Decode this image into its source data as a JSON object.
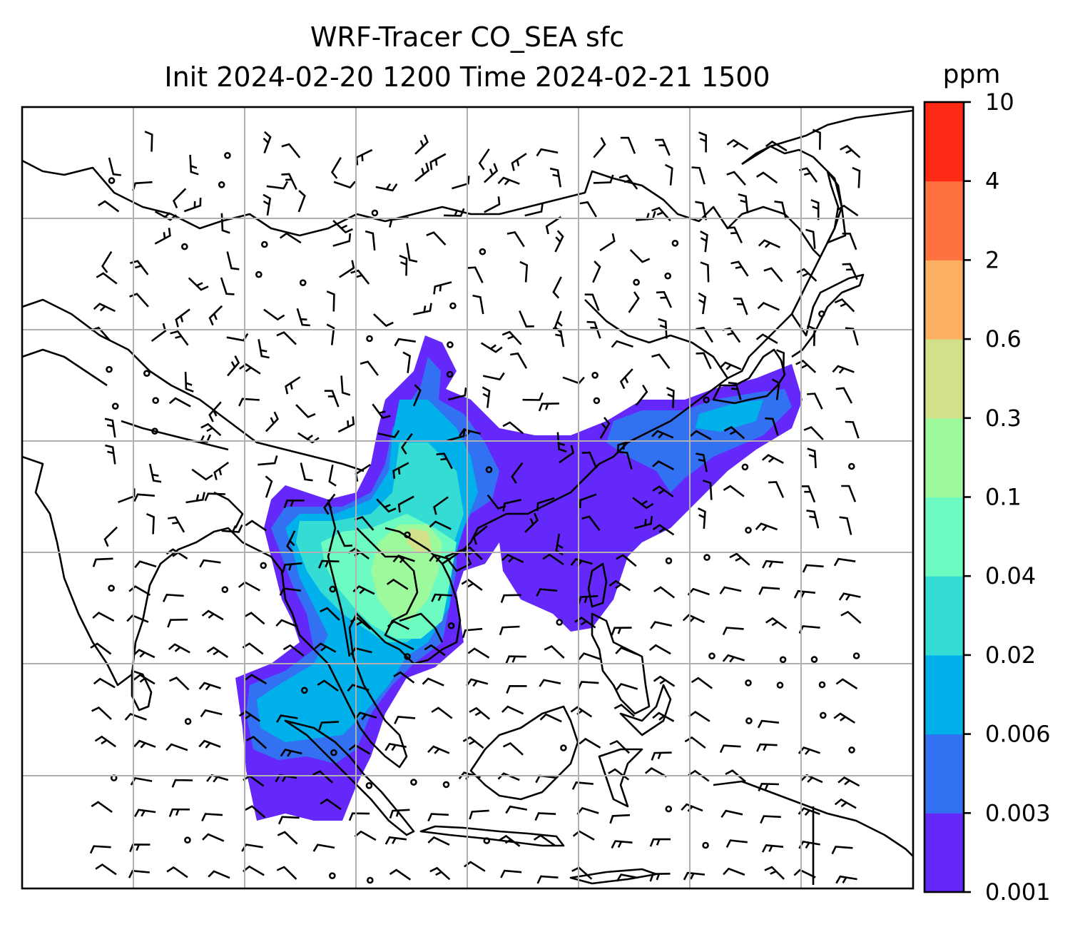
{
  "chart_data": {
    "type": "heatmap",
    "title": "WRF-Tracer CO_SEA sfc",
    "subtitle": "Init 2024-02-20 1200 Time 2024-02-21 1500",
    "colorbar": {
      "unit": "ppm",
      "levels": [
        "0.001",
        "0.003",
        "0.006",
        "0.02",
        "0.04",
        "0.1",
        "0.3",
        "0.6",
        "2",
        "4",
        "10"
      ],
      "colors": [
        "#6428fa",
        "#3272f2",
        "#00b0ea",
        "#34dcd4",
        "#6cfbc0",
        "#9cfa9c",
        "#d2e08a",
        "#fdb062",
        "#ff7240",
        "#ff2a16"
      ]
    },
    "grid": true,
    "overlays": [
      "coastlines",
      "country borders",
      "wind barbs"
    ],
    "tracer_regions": [
      {
        "region": "Indochina mainland (Vietnam, Laos, Cambodia, Thailand)",
        "level": "0.04-0.3"
      },
      {
        "region": "Southern China",
        "level": "0.006-0.1"
      },
      {
        "region": "Taiwan Strait to south of Japan plume",
        "level": "0.001-0.04"
      },
      {
        "region": "Andaman Sea to northern Sumatra",
        "level": "0.001-0.02"
      }
    ]
  }
}
